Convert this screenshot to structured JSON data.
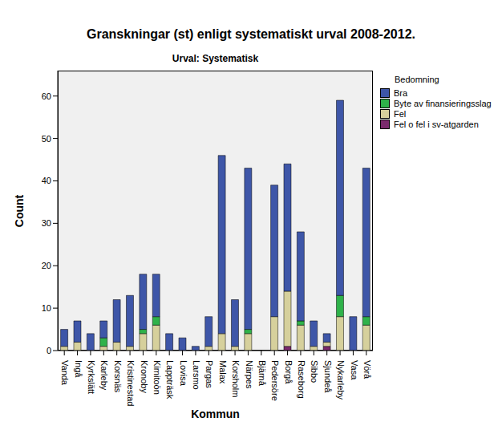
{
  "chart_data": {
    "type": "bar",
    "title": "Granskningar (st) enligt systematiskt urval 2008-2012.",
    "subtitle": "Urval: Systematisk",
    "x_label": "Kommun",
    "y_label": "Count",
    "legend_title": "Bedomning",
    "stacked": true,
    "grid": false,
    "legend": "right",
    "categories": [
      "Vanda",
      "Ingå",
      "Kyrkslätt",
      "Karleby",
      "Korsnäs",
      "Kristinestad",
      "Kronoby",
      "Kimitoön",
      "Lappträsk",
      "Lovisa",
      "Larsmo",
      "Pargas",
      "Malax",
      "Korsholm",
      "Närpes",
      "Bjärnå",
      "Pedersöre",
      "Borgå",
      "Raseborg",
      "Sibbo",
      "Sjundeå",
      "Nykarleby",
      "Vasa",
      "Vörå"
    ],
    "series": [
      {
        "name": "Bra",
        "color": "#3e56a8",
        "values": [
          4,
          5,
          4,
          4,
          10,
          12,
          13,
          10,
          4,
          3,
          1,
          7,
          42,
          11,
          38,
          0,
          31,
          30,
          21,
          6,
          2,
          46,
          8,
          35
        ]
      },
      {
        "name": "Byte av finansieringsslag",
        "color": "#2fb24a",
        "values": [
          0,
          0,
          0,
          2,
          0,
          0,
          1,
          2,
          0,
          0,
          0,
          0,
          0,
          0,
          1,
          0,
          0,
          0,
          1,
          0,
          0,
          5,
          0,
          2
        ]
      },
      {
        "name": "Fel",
        "color": "#d6d09c",
        "values": [
          1,
          2,
          0,
          1,
          2,
          1,
          4,
          6,
          0,
          0,
          0,
          1,
          4,
          1,
          4,
          0,
          8,
          13,
          6,
          1,
          1,
          8,
          0,
          6
        ]
      },
      {
        "name": "Fel o fel i sv-atgarden",
        "color": "#7a2a6c",
        "values": [
          0,
          0,
          0,
          0,
          0,
          0,
          0,
          0,
          0,
          0,
          0,
          0,
          0,
          0,
          0,
          0,
          0,
          1,
          0,
          0,
          1,
          0,
          0,
          0
        ]
      }
    ],
    "ylim": [
      0,
      66
    ],
    "yticks": [
      0,
      10,
      20,
      30,
      40,
      50,
      60
    ]
  }
}
